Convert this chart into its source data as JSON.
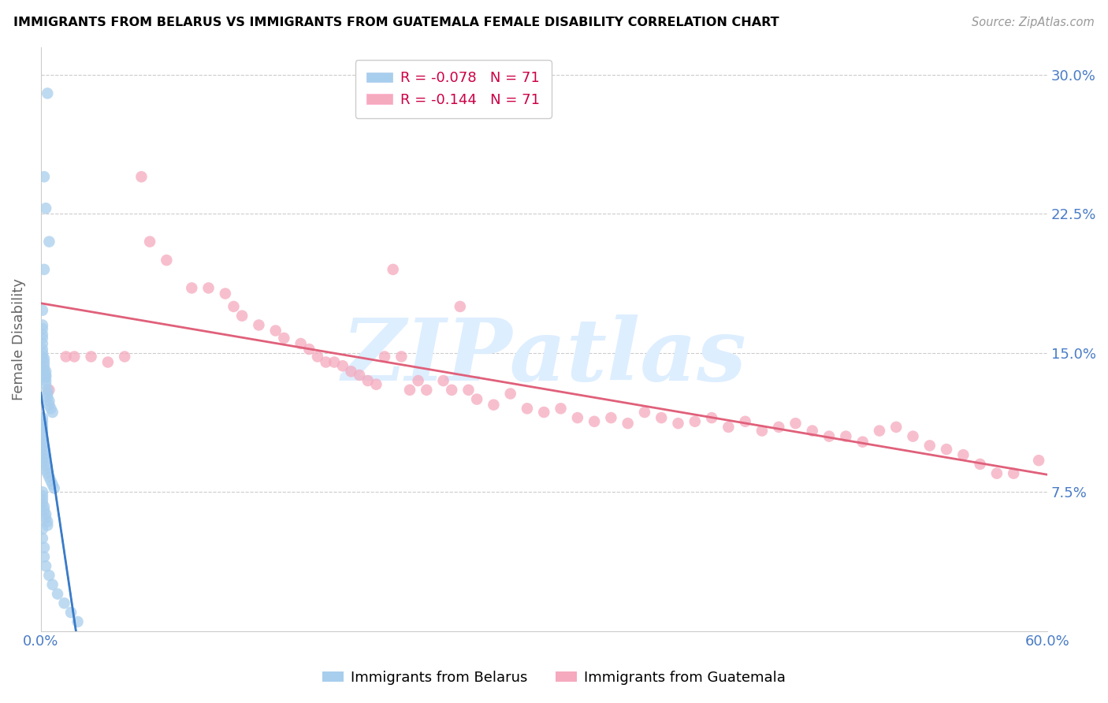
{
  "title": "IMMIGRANTS FROM BELARUS VS IMMIGRANTS FROM GUATEMALA FEMALE DISABILITY CORRELATION CHART",
  "source": "Source: ZipAtlas.com",
  "ylabel": "Female Disability",
  "xlim": [
    0.0,
    0.6
  ],
  "ylim": [
    0.0,
    0.315
  ],
  "color_blue": "#A8CEED",
  "color_pink": "#F5AABE",
  "line_blue": "#3A7BC8",
  "line_pink": "#E0607A",
  "watermark": "ZIPatlas",
  "watermark_color": "#DDEEFF",
  "R1": -0.078,
  "N1": 71,
  "R2": -0.144,
  "N2": 71,
  "legend_label1": "Immigrants from Belarus",
  "legend_label2": "Immigrants from Guatemala",
  "belarus_x": [
    0.004,
    0.002,
    0.003,
    0.005,
    0.002,
    0.001,
    0.001,
    0.001,
    0.001,
    0.001,
    0.001,
    0.001,
    0.001,
    0.001,
    0.002,
    0.002,
    0.002,
    0.002,
    0.003,
    0.003,
    0.003,
    0.003,
    0.003,
    0.004,
    0.004,
    0.004,
    0.005,
    0.005,
    0.006,
    0.007,
    0.001,
    0.001,
    0.001,
    0.001,
    0.001,
    0.001,
    0.001,
    0.001,
    0.001,
    0.002,
    0.002,
    0.002,
    0.002,
    0.003,
    0.003,
    0.004,
    0.005,
    0.006,
    0.007,
    0.008,
    0.001,
    0.001,
    0.001,
    0.001,
    0.002,
    0.002,
    0.003,
    0.003,
    0.004,
    0.004,
    0.001,
    0.001,
    0.002,
    0.002,
    0.003,
    0.005,
    0.007,
    0.01,
    0.014,
    0.018,
    0.022
  ],
  "belarus_y": [
    0.29,
    0.245,
    0.228,
    0.21,
    0.195,
    0.173,
    0.165,
    0.163,
    0.16,
    0.158,
    0.155,
    0.152,
    0.15,
    0.148,
    0.147,
    0.145,
    0.143,
    0.141,
    0.14,
    0.138,
    0.137,
    0.135,
    0.133,
    0.13,
    0.128,
    0.126,
    0.124,
    0.122,
    0.12,
    0.118,
    0.115,
    0.113,
    0.111,
    0.109,
    0.107,
    0.105,
    0.103,
    0.101,
    0.099,
    0.097,
    0.095,
    0.093,
    0.091,
    0.089,
    0.087,
    0.085,
    0.083,
    0.081,
    0.079,
    0.077,
    0.075,
    0.073,
    0.071,
    0.069,
    0.067,
    0.065,
    0.063,
    0.061,
    0.059,
    0.057,
    0.055,
    0.05,
    0.045,
    0.04,
    0.035,
    0.03,
    0.025,
    0.02,
    0.015,
    0.01,
    0.005
  ],
  "guatemala_x": [
    0.005,
    0.015,
    0.02,
    0.03,
    0.04,
    0.05,
    0.06,
    0.065,
    0.075,
    0.09,
    0.1,
    0.11,
    0.115,
    0.12,
    0.13,
    0.14,
    0.145,
    0.155,
    0.16,
    0.165,
    0.17,
    0.175,
    0.18,
    0.185,
    0.19,
    0.195,
    0.2,
    0.205,
    0.21,
    0.215,
    0.22,
    0.225,
    0.23,
    0.24,
    0.245,
    0.25,
    0.255,
    0.26,
    0.27,
    0.28,
    0.29,
    0.3,
    0.31,
    0.32,
    0.33,
    0.34,
    0.35,
    0.36,
    0.37,
    0.38,
    0.39,
    0.4,
    0.41,
    0.42,
    0.43,
    0.44,
    0.45,
    0.46,
    0.47,
    0.48,
    0.49,
    0.5,
    0.51,
    0.52,
    0.53,
    0.54,
    0.55,
    0.56,
    0.57,
    0.58,
    0.595
  ],
  "guatemala_y": [
    0.13,
    0.148,
    0.148,
    0.148,
    0.145,
    0.148,
    0.245,
    0.21,
    0.2,
    0.185,
    0.185,
    0.182,
    0.175,
    0.17,
    0.165,
    0.162,
    0.158,
    0.155,
    0.152,
    0.148,
    0.145,
    0.145,
    0.143,
    0.14,
    0.138,
    0.135,
    0.133,
    0.148,
    0.195,
    0.148,
    0.13,
    0.135,
    0.13,
    0.135,
    0.13,
    0.175,
    0.13,
    0.125,
    0.122,
    0.128,
    0.12,
    0.118,
    0.12,
    0.115,
    0.113,
    0.115,
    0.112,
    0.118,
    0.115,
    0.112,
    0.113,
    0.115,
    0.11,
    0.113,
    0.108,
    0.11,
    0.112,
    0.108,
    0.105,
    0.105,
    0.102,
    0.108,
    0.11,
    0.105,
    0.1,
    0.098,
    0.095,
    0.09,
    0.085,
    0.085,
    0.092
  ]
}
